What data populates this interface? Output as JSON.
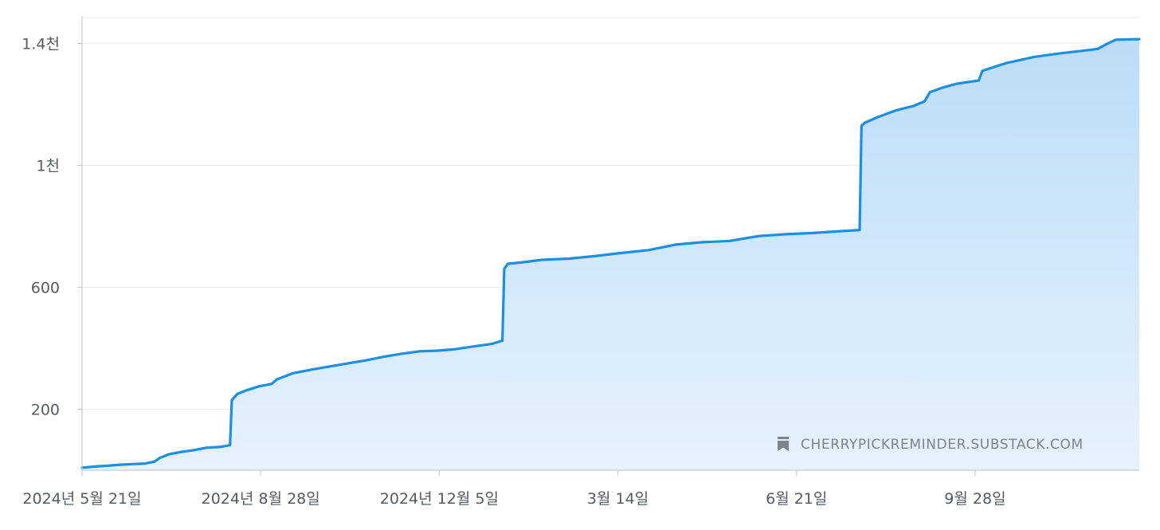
{
  "watermark": {
    "icon": "bookmark-icon",
    "text": "CHERRYPICKREMINDER.SUBSTACK.COM"
  },
  "colors": {
    "line": "#1a8fe3",
    "area_top": "#bcdcf7",
    "area_bottom": "#e6f2fc",
    "grid": "#e9ebee",
    "axis": "#c9ccd1",
    "text": "#555b63"
  },
  "chart_data": {
    "type": "area",
    "title": "",
    "xlabel": "",
    "ylabel": "",
    "xlim": [
      "2024-05-21",
      "2025-12-28"
    ],
    "ylim": [
      0,
      1490
    ],
    "grid": true,
    "x_ticks": [
      {
        "date": "2024-05-21",
        "label": "2024년 5월 21일"
      },
      {
        "date": "2024-08-28",
        "label": "2024년 8월 28일"
      },
      {
        "date": "2024-12-05",
        "label": "2024년 12월 5일"
      },
      {
        "date": "2025-03-14",
        "label": "3월 14일"
      },
      {
        "date": "2025-06-21",
        "label": "6월 21일"
      },
      {
        "date": "2025-09-28",
        "label": "9월 28일"
      }
    ],
    "y_ticks": [
      {
        "value": 200,
        "label": "200"
      },
      {
        "value": 600,
        "label": "600"
      },
      {
        "value": 1000,
        "label": "1천"
      },
      {
        "value": 1400,
        "label": "1.4천"
      }
    ],
    "series": [
      {
        "points": [
          [
            "2024-05-21",
            8
          ],
          [
            "2024-05-28",
            12
          ],
          [
            "2024-06-04",
            15
          ],
          [
            "2024-06-11",
            18
          ],
          [
            "2024-06-18",
            20
          ],
          [
            "2024-06-25",
            22
          ],
          [
            "2024-06-30",
            28
          ],
          [
            "2024-07-03",
            40
          ],
          [
            "2024-07-08",
            52
          ],
          [
            "2024-07-15",
            60
          ],
          [
            "2024-07-22",
            66
          ],
          [
            "2024-07-29",
            74
          ],
          [
            "2024-08-05",
            76
          ],
          [
            "2024-08-11",
            82
          ],
          [
            "2024-08-12",
            230
          ],
          [
            "2024-08-15",
            250
          ],
          [
            "2024-08-20",
            262
          ],
          [
            "2024-08-27",
            275
          ],
          [
            "2024-09-03",
            283
          ],
          [
            "2024-09-06",
            298
          ],
          [
            "2024-09-15",
            318
          ],
          [
            "2024-09-25",
            330
          ],
          [
            "2024-10-05",
            340
          ],
          [
            "2024-10-15",
            350
          ],
          [
            "2024-10-25",
            360
          ],
          [
            "2024-11-04",
            372
          ],
          [
            "2024-11-14",
            382
          ],
          [
            "2024-11-24",
            390
          ],
          [
            "2024-12-04",
            392
          ],
          [
            "2024-12-14",
            397
          ],
          [
            "2024-12-24",
            406
          ],
          [
            "2025-01-03",
            414
          ],
          [
            "2025-01-09",
            425
          ],
          [
            "2025-01-10",
            660
          ],
          [
            "2025-01-12",
            677
          ],
          [
            "2025-01-20",
            682
          ],
          [
            "2025-01-31",
            690
          ],
          [
            "2025-02-15",
            694
          ],
          [
            "2025-03-01",
            702
          ],
          [
            "2025-03-15",
            712
          ],
          [
            "2025-03-31",
            722
          ],
          [
            "2025-04-15",
            740
          ],
          [
            "2025-04-30",
            748
          ],
          [
            "2025-05-15",
            752
          ],
          [
            "2025-05-31",
            768
          ],
          [
            "2025-06-15",
            774
          ],
          [
            "2025-06-30",
            778
          ],
          [
            "2025-07-15",
            784
          ],
          [
            "2025-07-26",
            788
          ],
          [
            "2025-07-27",
            1130
          ],
          [
            "2025-07-29",
            1140
          ],
          [
            "2025-08-05",
            1158
          ],
          [
            "2025-08-15",
            1180
          ],
          [
            "2025-08-25",
            1195
          ],
          [
            "2025-08-31",
            1210
          ],
          [
            "2025-09-03",
            1240
          ],
          [
            "2025-09-10",
            1255
          ],
          [
            "2025-09-18",
            1268
          ],
          [
            "2025-09-30",
            1278
          ],
          [
            "2025-10-02",
            1310
          ],
          [
            "2025-10-15",
            1335
          ],
          [
            "2025-10-31",
            1356
          ],
          [
            "2025-11-15",
            1368
          ],
          [
            "2025-11-30",
            1378
          ],
          [
            "2025-12-05",
            1382
          ],
          [
            "2025-12-10",
            1398
          ],
          [
            "2025-12-15",
            1412
          ],
          [
            "2025-12-28",
            1414
          ]
        ]
      }
    ]
  }
}
